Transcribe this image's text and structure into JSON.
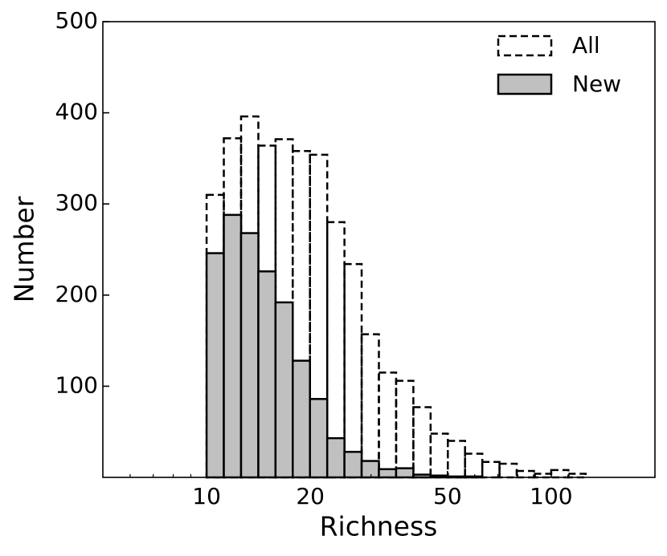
{
  "chart_data": {
    "type": "histogram",
    "xlabel": "Richness",
    "ylabel": "Number",
    "bins": [
      10,
      11.22,
      12.59,
      14.13,
      15.85,
      17.78,
      19.95,
      22.39,
      25.12,
      28.18,
      31.62,
      35.48,
      39.81,
      44.67,
      50.12,
      56.23,
      63.1,
      70.79,
      79.43,
      89.13,
      100,
      112.2,
      125.89
    ],
    "series": [
      {
        "name": "All",
        "color": "none",
        "edgecolor": "#000000",
        "linestyle": "dashed",
        "values": [
          310,
          372,
          396,
          364,
          371,
          358,
          354,
          280,
          234,
          157,
          115,
          106,
          77,
          48,
          40,
          26,
          17,
          15,
          7,
          4,
          8,
          4
        ]
      },
      {
        "name": "New",
        "color": "#c0c0c0",
        "edgecolor": "#000000",
        "linestyle": "solid",
        "values": [
          246,
          288,
          268,
          226,
          192,
          128,
          86,
          43,
          28,
          18,
          9,
          10,
          3,
          2,
          1,
          1,
          0,
          0,
          0,
          0,
          0,
          0
        ]
      }
    ],
    "xscale": "log",
    "xlim": [
      5,
      200
    ],
    "xticks": [
      10,
      20,
      50,
      100
    ],
    "xminorticks": [
      6,
      7,
      8,
      9,
      30,
      40,
      60,
      70,
      80,
      90,
      200
    ],
    "ylim": [
      0,
      500
    ],
    "yticks": [
      100,
      200,
      300,
      400,
      500
    ],
    "legend": "upper right"
  }
}
